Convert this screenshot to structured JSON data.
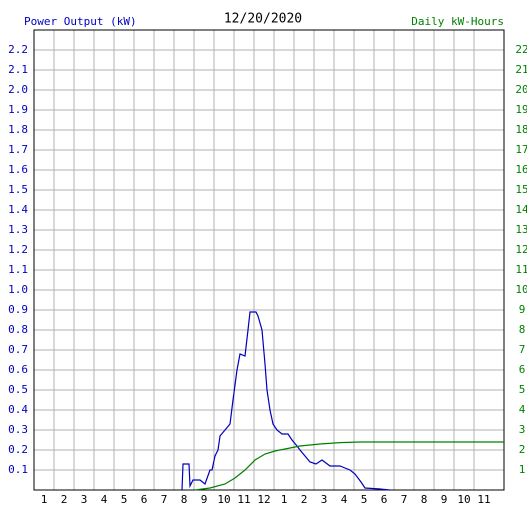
{
  "chart_data": {
    "type": "line",
    "title": "12/20/2020",
    "y_label": "Power Output (kW)",
    "y2_label": "Daily kW-Hours",
    "grid": true,
    "xlim": [
      0.5,
      24
    ],
    "xticks": [
      1,
      2,
      3,
      4,
      5,
      6,
      7,
      8,
      9,
      10,
      11,
      {
        "value": 12,
        "label": "12"
      },
      {
        "value": 13,
        "label": "1"
      },
      {
        "value": 14,
        "label": "2"
      },
      {
        "value": 15,
        "label": "3"
      },
      {
        "value": 16,
        "label": "4"
      },
      {
        "value": 17,
        "label": "5"
      },
      {
        "value": 18,
        "label": "6"
      },
      {
        "value": 19,
        "label": "7"
      },
      {
        "value": 20,
        "label": "8"
      },
      {
        "value": 21,
        "label": "9"
      },
      {
        "value": 22,
        "label": "10"
      },
      {
        "value": 23,
        "label": "11"
      }
    ],
    "ylim": [
      0,
      2.3
    ],
    "yticks": [
      0.1,
      0.2,
      0.3,
      0.4,
      0.5,
      0.6,
      0.7,
      0.8,
      0.9,
      {
        "value": 1,
        "label": "1.0"
      },
      1.1,
      1.2,
      1.3,
      1.4,
      1.5,
      1.6,
      1.7,
      1.8,
      1.9,
      {
        "value": 2,
        "label": "2.0"
      },
      2.1,
      2.2
    ],
    "y2lim": [
      0,
      23
    ],
    "y2ticks": [
      1,
      2,
      3,
      4,
      5,
      6,
      7,
      8,
      9,
      10,
      11,
      12,
      13,
      14,
      15,
      16,
      17,
      18,
      19,
      20,
      21,
      22
    ],
    "series": [
      {
        "name": "Power Output (kW)",
        "color": "#0000c0",
        "x": [
          7.9,
          7.95,
          8.25,
          8.3,
          8.45,
          8.8,
          9.05,
          9.3,
          9.4,
          9.55,
          9.7,
          9.8,
          10.05,
          10.3,
          10.45,
          10.65,
          10.8,
          11.05,
          11.2,
          11.3,
          11.6,
          11.7,
          11.9,
          12.05,
          12.15,
          12.3,
          12.45,
          12.65,
          12.9,
          13.2,
          13.4,
          13.65,
          13.8,
          14.05,
          14.3,
          14.6,
          14.9,
          15.3,
          15.8,
          16.05,
          16.3,
          16.55,
          16.7,
          16.85,
          17.05,
          17.8,
          18.3
        ],
        "values": [
          0,
          0.13,
          0.13,
          0.02,
          0.05,
          0.05,
          0.03,
          0.1,
          0.1,
          0.17,
          0.2,
          0.27,
          0.3,
          0.33,
          0.45,
          0.6,
          0.68,
          0.67,
          0.8,
          0.89,
          0.89,
          0.87,
          0.8,
          0.63,
          0.5,
          0.4,
          0.33,
          0.3,
          0.28,
          0.28,
          0.25,
          0.22,
          0.2,
          0.17,
          0.14,
          0.13,
          0.15,
          0.12,
          0.12,
          0.11,
          0.1,
          0.08,
          0.06,
          0.04,
          0.01,
          0.005,
          0
        ]
      },
      {
        "name": "Daily kW-Hours",
        "color": "#008000",
        "axis": "y2",
        "x": [
          8.55,
          9.3,
          10.05,
          10.55,
          11.05,
          11.55,
          12.05,
          12.55,
          13.3,
          13.8,
          14.8,
          15.8,
          16.8,
          17.8,
          24
        ],
        "values": [
          0,
          0.1,
          0.3,
          0.6,
          1.0,
          1.5,
          1.8,
          1.95,
          2.1,
          2.2,
          2.3,
          2.37,
          2.4,
          2.4,
          2.4
        ]
      }
    ]
  }
}
